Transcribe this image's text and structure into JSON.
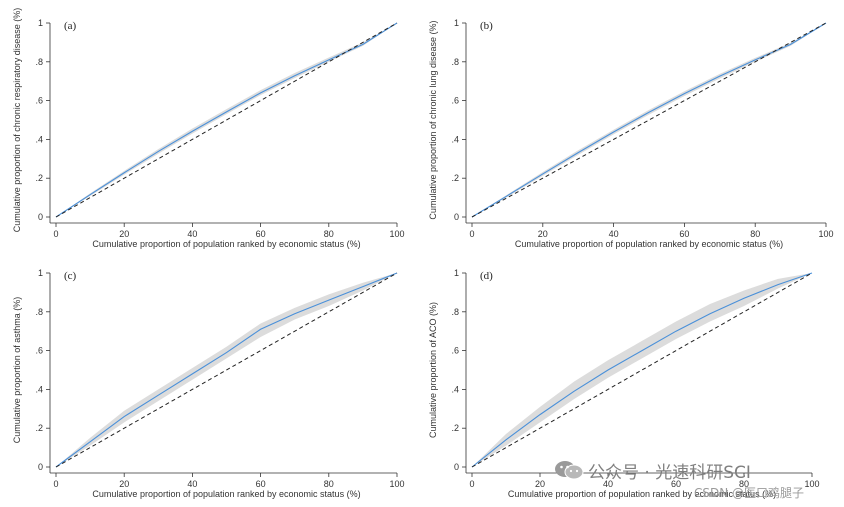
{
  "chart_data": [
    {
      "type": "line",
      "panel_label": "(a)",
      "xlabel": "Cumulative proportion of population ranked by economic status (%)",
      "ylabel": "Cumulative proportion of chronic respiratory disease (%)",
      "xlim": [
        0,
        100
      ],
      "ylim": [
        0,
        1
      ],
      "xticks": [
        0,
        20,
        40,
        60,
        80,
        100
      ],
      "xtick_labels": [
        "0",
        "20",
        "40",
        "60",
        "80",
        "100"
      ],
      "yticks": [
        0,
        0.2,
        0.4,
        0.6,
        0.8,
        1
      ],
      "ytick_labels": [
        "0",
        ".2",
        ".4",
        ".6",
        ".8",
        "1"
      ],
      "series": [
        {
          "name": "concentration curve",
          "style": "solid",
          "color": "#4a90d9",
          "x": [
            0,
            10,
            20,
            30,
            40,
            50,
            60,
            70,
            80,
            90,
            100
          ],
          "y": [
            0,
            0.115,
            0.228,
            0.338,
            0.442,
            0.542,
            0.64,
            0.728,
            0.81,
            0.89,
            1.0
          ]
        },
        {
          "name": "line of equality",
          "style": "dashed",
          "color": "#222222",
          "x": [
            0,
            100
          ],
          "y": [
            0,
            1
          ]
        }
      ],
      "ci_band": {
        "x": [
          0,
          10,
          20,
          30,
          40,
          50,
          60,
          70,
          80,
          90,
          100
        ],
        "lower": [
          0,
          0.108,
          0.218,
          0.326,
          0.43,
          0.53,
          0.628,
          0.716,
          0.8,
          0.882,
          1.0
        ],
        "upper": [
          0,
          0.122,
          0.238,
          0.35,
          0.456,
          0.556,
          0.654,
          0.742,
          0.822,
          0.9,
          1.0
        ]
      }
    },
    {
      "type": "line",
      "panel_label": "(b)",
      "xlabel": "Cumulative proportion of population ranked by economic status (%)",
      "ylabel": "Cumulative proportion of chronic lung disease (%)",
      "xlim": [
        0,
        100
      ],
      "ylim": [
        0,
        1
      ],
      "xticks": [
        0,
        20,
        40,
        60,
        80,
        100
      ],
      "xtick_labels": [
        "0",
        "20",
        "40",
        "60",
        "80",
        "100"
      ],
      "yticks": [
        0,
        0.2,
        0.4,
        0.6,
        0.8,
        1
      ],
      "ytick_labels": [
        "0",
        ".2",
        ".4",
        ".6",
        ".8",
        "1"
      ],
      "series": [
        {
          "name": "concentration curve",
          "style": "solid",
          "color": "#4a90d9",
          "x": [
            0,
            10,
            20,
            30,
            40,
            50,
            60,
            70,
            80,
            90,
            100
          ],
          "y": [
            0,
            0.11,
            0.222,
            0.332,
            0.438,
            0.54,
            0.636,
            0.726,
            0.81,
            0.89,
            1.0
          ]
        },
        {
          "name": "line of equality",
          "style": "dashed",
          "color": "#222222",
          "x": [
            0,
            100
          ],
          "y": [
            0,
            1
          ]
        }
      ],
      "ci_band": {
        "x": [
          0,
          10,
          20,
          30,
          40,
          50,
          60,
          70,
          80,
          90,
          100
        ],
        "lower": [
          0,
          0.104,
          0.212,
          0.32,
          0.426,
          0.528,
          0.624,
          0.714,
          0.8,
          0.882,
          1.0
        ],
        "upper": [
          0,
          0.116,
          0.232,
          0.344,
          0.45,
          0.552,
          0.648,
          0.738,
          0.82,
          0.898,
          1.0
        ]
      }
    },
    {
      "type": "line",
      "panel_label": "(c)",
      "xlabel": "Cumulative proportion of population ranked by economic status (%)",
      "ylabel": "Cumulative proportion of asthma (%)",
      "xlim": [
        0,
        100
      ],
      "ylim": [
        0,
        1
      ],
      "xticks": [
        0,
        20,
        40,
        60,
        80,
        100
      ],
      "xtick_labels": [
        "0",
        "20",
        "40",
        "60",
        "80",
        "100"
      ],
      "yticks": [
        0,
        0.2,
        0.4,
        0.6,
        0.8,
        1
      ],
      "ytick_labels": [
        "0",
        ".2",
        ".4",
        ".6",
        ".8",
        "1"
      ],
      "series": [
        {
          "name": "concentration curve",
          "style": "solid",
          "color": "#4a90d9",
          "x": [
            0,
            10,
            20,
            30,
            40,
            50,
            60,
            70,
            80,
            90,
            100
          ],
          "y": [
            0,
            0.13,
            0.26,
            0.37,
            0.48,
            0.59,
            0.71,
            0.79,
            0.86,
            0.93,
            1.0
          ]
        },
        {
          "name": "line of equality",
          "style": "dashed",
          "color": "#222222",
          "x": [
            0,
            100
          ],
          "y": [
            0,
            1
          ]
        }
      ],
      "ci_band": {
        "x": [
          0,
          10,
          20,
          30,
          40,
          50,
          60,
          70,
          80,
          90,
          100
        ],
        "lower": [
          0,
          0.11,
          0.23,
          0.34,
          0.45,
          0.56,
          0.67,
          0.76,
          0.83,
          0.91,
          1.0
        ],
        "upper": [
          0,
          0.15,
          0.29,
          0.4,
          0.51,
          0.62,
          0.74,
          0.82,
          0.89,
          0.95,
          1.0
        ]
      }
    },
    {
      "type": "line",
      "panel_label": "(d)",
      "xlabel": "Cumulative proportion of population ranked by economic status (%)",
      "ylabel": "Cumulative proportion of ACO (%)",
      "xlim": [
        0,
        100
      ],
      "ylim": [
        0,
        1
      ],
      "xticks": [
        0,
        20,
        40,
        60,
        80,
        100
      ],
      "xtick_labels": [
        "0",
        "20",
        "40",
        "60",
        "80",
        "100"
      ],
      "yticks": [
        0,
        0.2,
        0.4,
        0.6,
        0.8,
        1
      ],
      "ytick_labels": [
        "0",
        ".2",
        ".4",
        ".6",
        ".8",
        "1"
      ],
      "series": [
        {
          "name": "concentration curve",
          "style": "solid",
          "color": "#4a90d9",
          "x": [
            0,
            10,
            20,
            30,
            40,
            50,
            60,
            70,
            80,
            90,
            100
          ],
          "y": [
            0,
            0.14,
            0.27,
            0.39,
            0.5,
            0.6,
            0.7,
            0.79,
            0.87,
            0.94,
            1.0
          ]
        },
        {
          "name": "line of equality",
          "style": "dashed",
          "color": "#222222",
          "x": [
            0,
            100
          ],
          "y": [
            0,
            1
          ]
        }
      ],
      "ci_band": {
        "x": [
          0,
          10,
          20,
          30,
          40,
          50,
          60,
          70,
          80,
          90,
          100
        ],
        "lower": [
          0,
          0.11,
          0.23,
          0.35,
          0.46,
          0.56,
          0.66,
          0.75,
          0.83,
          0.92,
          1.0
        ],
        "upper": [
          0,
          0.17,
          0.31,
          0.44,
          0.55,
          0.65,
          0.75,
          0.84,
          0.91,
          0.97,
          1.0
        ]
      }
    }
  ],
  "colors": {
    "curve": "#4a90d9",
    "band": "#dcdcdc",
    "equality": "#222222",
    "axis": "#333333"
  },
  "watermark": {
    "primary": "公众号 · 光速科研SCI",
    "secondary": "CSDN @医口鸡腿子",
    "icon": "wechat-icon"
  }
}
